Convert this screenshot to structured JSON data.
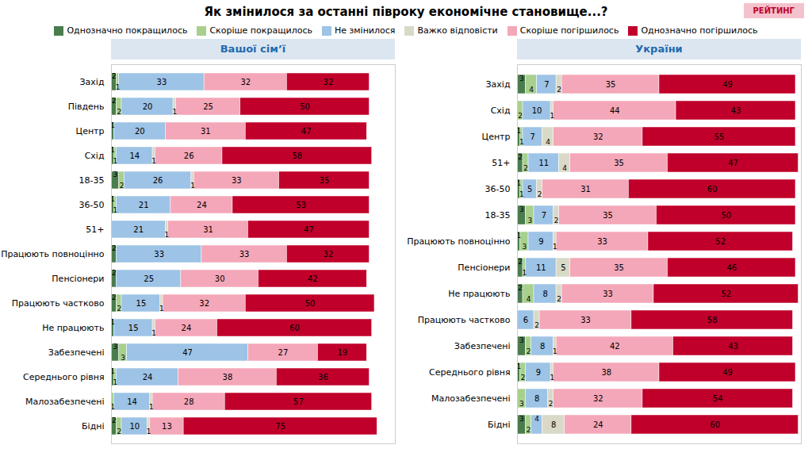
{
  "chart_data": [
    {
      "type": "bar",
      "title": "Як змінилося за останні півроку економічне становище...?",
      "annotations": [
        "РЕЙТИНГ"
      ],
      "subtitle": "Вашої сім’ї",
      "orientation": "horizontal",
      "stacked": true,
      "data_labels": true,
      "tick_labels": "y",
      "categories": [
        "Захід",
        "Південь",
        "Центр",
        "Схід",
        "18-35",
        "36-50",
        "51+",
        "Працюють повноцінно",
        "Пенсіонери",
        "Працюють частково",
        "Не працюють",
        "Забезпечені",
        "Середнього рівня",
        "Малозабезпечені",
        "Бідні"
      ],
      "series": [
        {
          "name": "Однозначно покращилось",
          "color": "#4a7c4e",
          "values": [
            2,
            2,
            1,
            1,
            3,
            1,
            0,
            2,
            2,
            2,
            1,
            3,
            1,
            0,
            2
          ]
        },
        {
          "name": "Скоріше покращилось",
          "color": "#a8d08d",
          "values": [
            1,
            2,
            0,
            1,
            2,
            1,
            0,
            0,
            0,
            2,
            0,
            3,
            1,
            1,
            2
          ]
        },
        {
          "name": "Не змінилося",
          "color": "#9dc3e6",
          "values": [
            33,
            20,
            20,
            14,
            26,
            21,
            21,
            33,
            25,
            15,
            15,
            47,
            24,
            14,
            10
          ]
        },
        {
          "name": "Важко відповісти",
          "color": "#d9d9c8",
          "values": [
            0,
            1,
            0,
            1,
            1,
            0,
            1,
            0,
            0,
            1,
            1,
            0,
            0,
            1,
            1
          ]
        },
        {
          "name": "Скоріше погіршилось",
          "color": "#f4a7b9",
          "values": [
            32,
            25,
            31,
            26,
            33,
            24,
            31,
            33,
            30,
            32,
            24,
            27,
            38,
            28,
            13
          ]
        },
        {
          "name": "Однозначно погіршилось",
          "color": "#c0002a",
          "values": [
            32,
            50,
            47,
            58,
            35,
            53,
            47,
            32,
            42,
            50,
            60,
            19,
            36,
            57,
            75
          ]
        }
      ],
      "xlim": [
        0,
        110
      ]
    },
    {
      "type": "bar",
      "subtitle": "України",
      "orientation": "horizontal",
      "stacked": true,
      "data_labels": true,
      "tick_labels": "y",
      "categories": [
        "Захід",
        "Схід",
        "Центр",
        "51+",
        "36-50",
        "18-35",
        "Працюють повноцінно",
        "Пенсіонери",
        "Не працюють",
        "Працюють частково",
        "Забезпечені",
        "Середнього рівня",
        "Малозабезпечені",
        "Бідні"
      ],
      "series": [
        {
          "name": "Однозначно покращилось",
          "color": "#4a7c4e",
          "values": [
            3,
            0,
            1,
            2,
            1,
            3,
            1,
            2,
            2,
            0,
            3,
            1,
            0,
            3
          ]
        },
        {
          "name": "Скоріше покращилось",
          "color": "#a8d08d",
          "values": [
            4,
            2,
            1,
            2,
            1,
            3,
            3,
            1,
            4,
            0,
            2,
            2,
            3,
            2
          ]
        },
        {
          "name": "Не змінилося",
          "color": "#9dc3e6",
          "values": [
            7,
            10,
            7,
            11,
            5,
            7,
            9,
            11,
            8,
            6,
            8,
            9,
            8,
            4
          ]
        },
        {
          "name": "Важко відповісти",
          "color": "#d9d9c8",
          "values": [
            2,
            1,
            4,
            4,
            2,
            2,
            1,
            5,
            2,
            2,
            1,
            1,
            2,
            8
          ]
        },
        {
          "name": "Скоріше погіршилось",
          "color": "#f4a7b9",
          "values": [
            35,
            44,
            32,
            35,
            31,
            35,
            33,
            35,
            33,
            33,
            42,
            38,
            32,
            24
          ]
        },
        {
          "name": "Однозначно погіршилось",
          "color": "#c0002a",
          "values": [
            49,
            43,
            55,
            47,
            60,
            50,
            52,
            46,
            52,
            58,
            43,
            49,
            54,
            60
          ]
        }
      ],
      "xlim": [
        0,
        102
      ]
    }
  ]
}
